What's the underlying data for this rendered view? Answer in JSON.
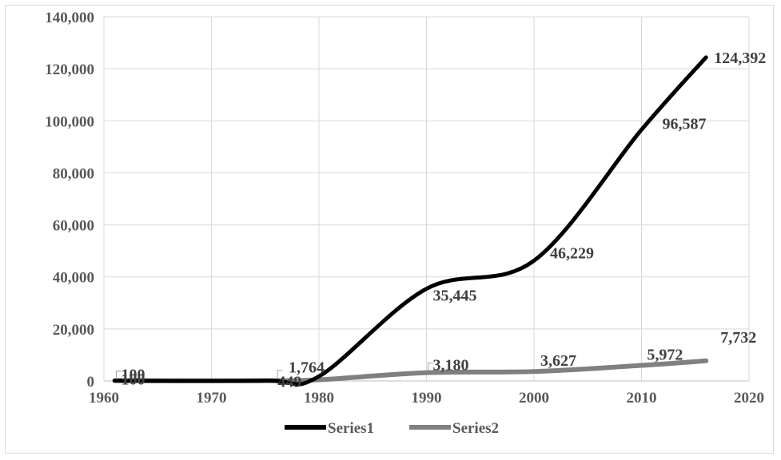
{
  "chart_data": {
    "type": "line",
    "x_ticks": [
      "1960",
      "1970",
      "1980",
      "1990",
      "2000",
      "2010",
      "2020"
    ],
    "y_ticks": [
      "0",
      "20,000",
      "40,000",
      "60,000",
      "80,000",
      "100,000",
      "120,000",
      "140,000"
    ],
    "xlim": [
      1960,
      2020
    ],
    "ylim": [
      0,
      140000
    ],
    "grid": true,
    "legend_position": "bottom",
    "series": [
      {
        "name": "Series1",
        "color": "#000000",
        "x": [
          1961,
          1975,
          1980,
          1990,
          2000,
          2010,
          2016
        ],
        "values": [
          100,
          100,
          1764,
          35445,
          46229,
          96587,
          124392
        ],
        "labels": [
          {
            "text": "100",
            "x": 1961,
            "y": 100
          },
          {
            "text": "1,764",
            "x": 1980,
            "y": 1764
          },
          {
            "text": "35,445",
            "x": 1990,
            "y": 35445
          },
          {
            "text": "46,229",
            "x": 2000,
            "y": 46229
          },
          {
            "text": "96,587",
            "x": 2010,
            "y": 96587
          },
          {
            "text": "124,392",
            "x": 2016,
            "y": 124392
          }
        ]
      },
      {
        "name": "Series2",
        "color": "#808080",
        "x": [
          1961,
          1975,
          1980,
          1990,
          2000,
          2010,
          2016
        ],
        "values": [
          100,
          100,
          449,
          3180,
          3627,
          5972,
          7732
        ],
        "labels": [
          {
            "text": "100",
            "x": 1961,
            "y": 100
          },
          {
            "text": "449",
            "x": 1976,
            "y": 449
          },
          {
            "text": "3,180",
            "x": 1990,
            "y": 3180
          },
          {
            "text": "3,627",
            "x": 2000,
            "y": 3627
          },
          {
            "text": "5,972",
            "x": 2012,
            "y": 5972
          },
          {
            "text": "7,732",
            "x": 2016,
            "y": 7732
          }
        ]
      }
    ]
  }
}
